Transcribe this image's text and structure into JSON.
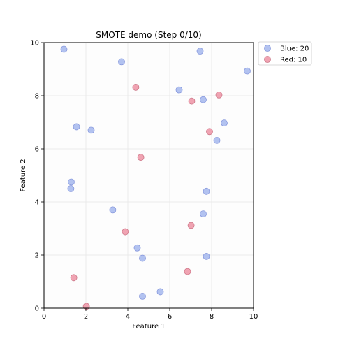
{
  "chart_data": {
    "type": "scatter",
    "title": "SMOTE demo (Step 0/10)",
    "xlabel": "Feature 1",
    "ylabel": "Feature 2",
    "xlim": [
      0,
      10
    ],
    "ylim": [
      0,
      10
    ],
    "x_ticks": [
      0,
      2,
      4,
      6,
      8,
      10
    ],
    "y_ticks": [
      0,
      2,
      4,
      6,
      8,
      10
    ],
    "grid": true,
    "legend_position": "outside-top-right",
    "series": [
      {
        "name": "Blue: 20",
        "color": "#aabbee",
        "edge_color": "#8899dd",
        "points": [
          [
            0.95,
            9.75
          ],
          [
            3.7,
            9.28
          ],
          [
            7.45,
            9.68
          ],
          [
            9.7,
            8.93
          ],
          [
            6.45,
            8.22
          ],
          [
            7.6,
            7.85
          ],
          [
            1.55,
            6.83
          ],
          [
            2.25,
            6.7
          ],
          [
            8.6,
            6.97
          ],
          [
            8.25,
            6.32
          ],
          [
            1.3,
            4.75
          ],
          [
            1.28,
            4.5
          ],
          [
            7.75,
            4.4
          ],
          [
            3.28,
            3.7
          ],
          [
            7.6,
            3.55
          ],
          [
            4.45,
            2.27
          ],
          [
            4.7,
            1.88
          ],
          [
            7.75,
            1.95
          ],
          [
            5.55,
            0.62
          ],
          [
            4.7,
            0.45
          ]
        ]
      },
      {
        "name": "Red: 10",
        "color": "#ee99aa",
        "edge_color": "#cc7788",
        "points": [
          [
            4.38,
            8.32
          ],
          [
            8.35,
            8.03
          ],
          [
            7.05,
            7.8
          ],
          [
            7.9,
            6.65
          ],
          [
            4.62,
            5.68
          ],
          [
            3.88,
            2.88
          ],
          [
            7.02,
            3.12
          ],
          [
            6.85,
            1.38
          ],
          [
            1.42,
            1.15
          ],
          [
            2.02,
            0.07
          ]
        ]
      }
    ]
  }
}
